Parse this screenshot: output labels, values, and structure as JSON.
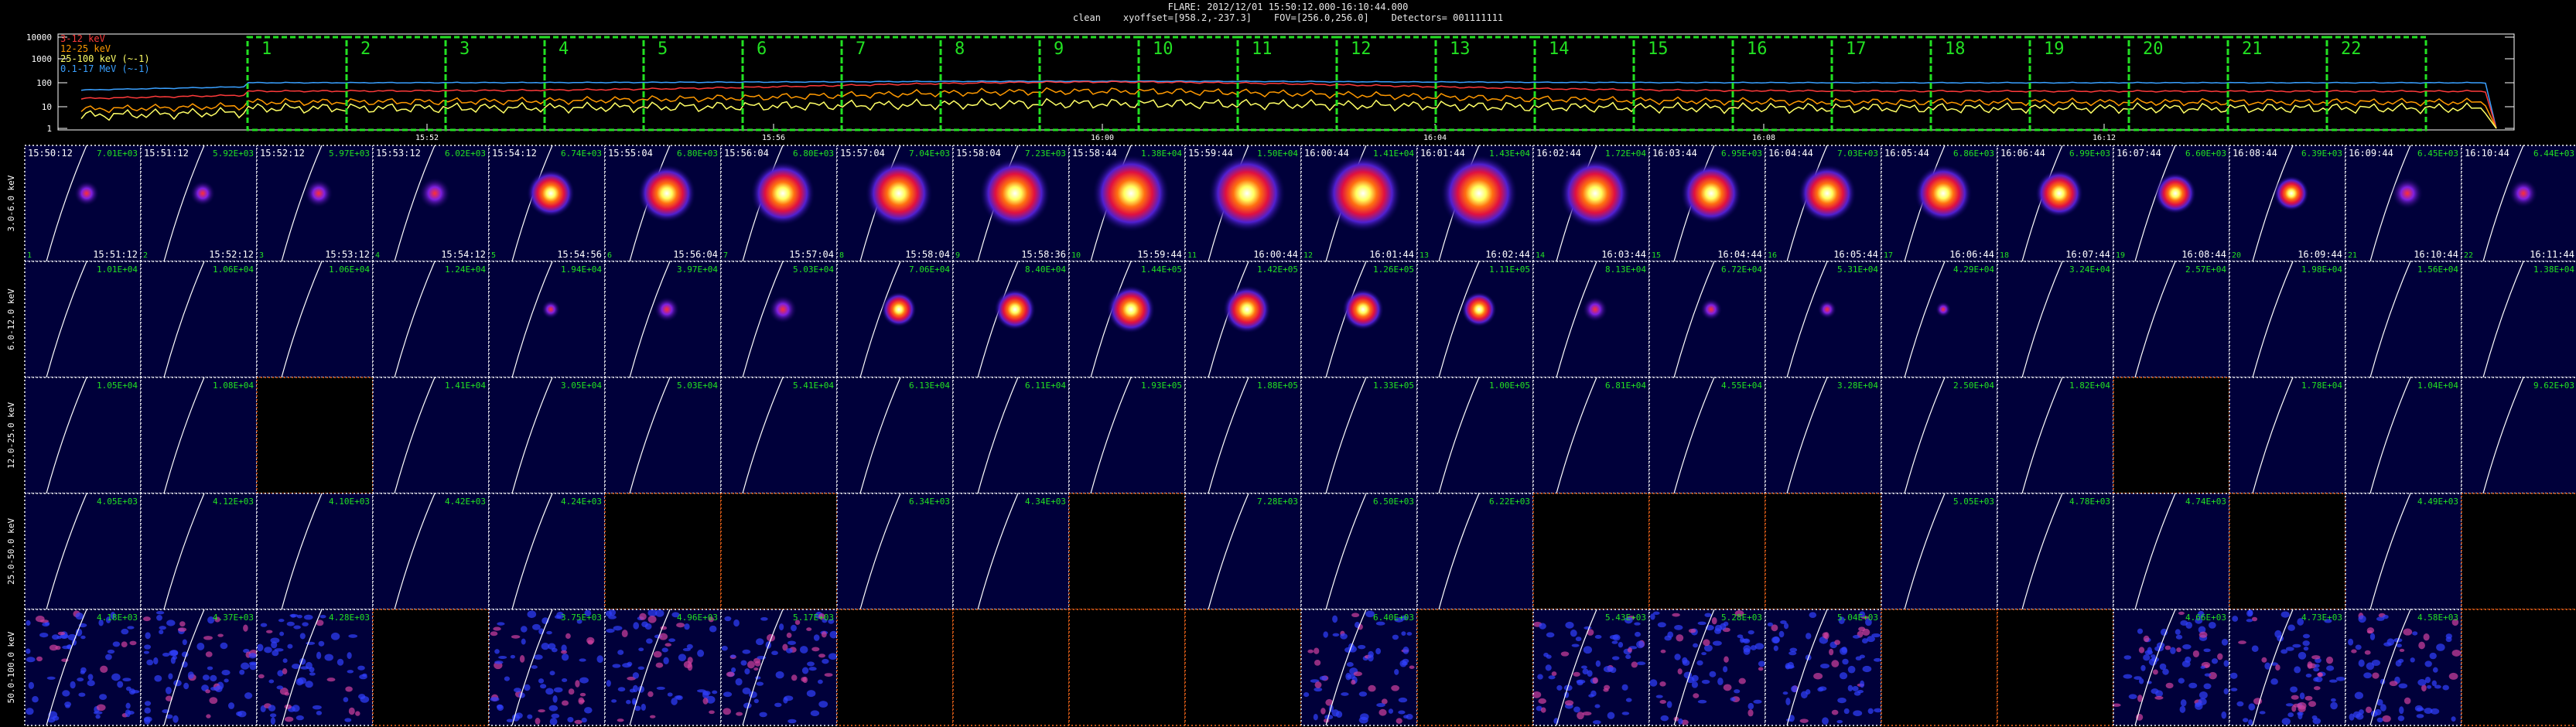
{
  "header": {
    "line1": "FLARE: 2012/12/01 15:50:12.000-16:10:44.000",
    "line2": "clean    xyoffset=[958.2,-237.3]    FOV=[256.0,256.0]    Detectors= 001111111"
  },
  "colors": {
    "band_3_6": "#ff3a3a",
    "band_12_25": "#ff9900",
    "band_25_100": "#ffff66",
    "band_ghost": "#3aa0ff",
    "interval_box": "#22e022",
    "panel_border": "#ffffff",
    "empty_border": "#ff6a1a",
    "limb": "#ffffff",
    "flux_label": "#22e022"
  },
  "chart_data": {
    "type": "line",
    "y_scale": "log",
    "y_ticks": [
      "10000",
      "1000",
      "100",
      "10",
      "1"
    ],
    "x_ticks": [
      "15:52",
      "15:56",
      "16:00",
      "16:04",
      "16:08",
      "16:12"
    ],
    "legend": [
      {
        "label": "3-12 keV",
        "color": "#ff3a3a"
      },
      {
        "label": "12-25 keV",
        "color": "#ff9900"
      },
      {
        "label": "25-100 keV (~-1)",
        "color": "#ffff66"
      },
      {
        "label": "0.1-17 MeV (~-1)",
        "color": "#3aa0ff"
      }
    ],
    "interval_numbers": [
      "1",
      "2",
      "3",
      "4",
      "5",
      "6",
      "7",
      "8",
      "9",
      "10",
      "11",
      "12",
      "13",
      "14",
      "15",
      "16",
      "17",
      "18",
      "19",
      "20",
      "21",
      "22"
    ],
    "energy_bands": [
      "3.0-6.0 keV",
      "6.0-12.0 keV",
      "12.0-25.0 keV",
      "25.0-50.0 keV",
      "50.0-100.0 keV"
    ],
    "start_times": [
      "15:50:12",
      "15:51:12",
      "15:52:12",
      "15:53:12",
      "15:54:12",
      "15:55:04",
      "15:56:04",
      "15:57:04",
      "15:58:04",
      "15:58:44",
      "15:59:44",
      "16:00:44",
      "16:01:44",
      "16:02:44",
      "16:03:44",
      "16:04:44",
      "16:05:44",
      "16:06:44",
      "16:07:44",
      "16:08:44",
      "16:09:44",
      "16:10:44"
    ],
    "end_times": [
      "15:51:12",
      "15:52:12",
      "15:53:12",
      "15:54:12",
      "15:54:56",
      "15:56:04",
      "15:57:04",
      "15:58:04",
      "15:58:36",
      "15:59:44",
      "16:00:44",
      "16:01:44",
      "16:02:44",
      "16:03:44",
      "16:04:44",
      "16:05:44",
      "16:06:44",
      "16:07:44",
      "16:08:44",
      "16:09:44",
      "16:10:44",
      "16:11:44"
    ],
    "flux_labels": [
      [
        "7.01E+03",
        "5.92E+03",
        "5.97E+03",
        "6.02E+03",
        "6.74E+03",
        "6.80E+03",
        "6.80E+03",
        "7.04E+03",
        "7.23E+03",
        "1.38E+04",
        "1.50E+04",
        "1.41E+04",
        "1.43E+04",
        "1.72E+04",
        "6.95E+03",
        "7.03E+03",
        "6.86E+03",
        "6.99E+03",
        "6.60E+03",
        "6.39E+03",
        "6.45E+03",
        "6.44E+03"
      ],
      [
        "1.01E+04",
        "1.06E+04",
        "1.06E+04",
        "1.24E+04",
        "1.94E+04",
        "3.97E+04",
        "5.03E+04",
        "7.06E+04",
        "8.40E+04",
        "1.44E+05",
        "1.42E+05",
        "1.26E+05",
        "1.11E+05",
        "8.13E+04",
        "6.72E+04",
        "5.31E+04",
        "4.29E+04",
        "3.24E+04",
        "2.57E+04",
        "1.98E+04",
        "1.56E+04",
        "1.38E+04"
      ],
      [
        "1.05E+04",
        "1.08E+04",
        "",
        "1.41E+04",
        "3.05E+04",
        "5.03E+04",
        "5.41E+04",
        "6.13E+04",
        "6.11E+04",
        "1.93E+05",
        "1.88E+05",
        "1.33E+05",
        "1.00E+05",
        "6.81E+04",
        "4.55E+04",
        "3.28E+04",
        "2.50E+04",
        "1.82E+04",
        "",
        "1.78E+04",
        "1.04E+04",
        "9.62E+03"
      ],
      [
        "4.05E+03",
        "4.12E+03",
        "4.10E+03",
        "4.42E+03",
        "4.24E+03",
        "",
        "",
        "6.34E+03",
        "4.34E+03",
        "",
        "7.28E+03",
        "6.50E+03",
        "6.22E+03",
        "",
        "",
        "",
        "5.05E+03",
        "4.78E+03",
        "4.74E+03",
        "",
        "4.49E+03",
        ""
      ],
      [
        "4.18E+03",
        "4.37E+03",
        "4.28E+03",
        "",
        "3.75E+03",
        "4.96E+03",
        "5.17E+03",
        "",
        "",
        "",
        "",
        "6.40E+03",
        "",
        "5.43E+03",
        "5.28E+03",
        "5.04E+03",
        "",
        "",
        "4.66E+03",
        "4.73E+03",
        "4.58E+03",
        ""
      ]
    ],
    "empty_panels": [
      [],
      [],
      [
        2,
        18
      ],
      [
        5,
        6,
        9,
        13,
        14,
        15,
        19,
        21
      ],
      [
        3,
        7,
        8,
        9,
        10,
        12,
        16,
        17,
        21
      ]
    ],
    "source_intensity": [
      [
        0.2,
        0.2,
        0.25,
        0.3,
        0.55,
        0.7,
        0.8,
        0.85,
        0.9,
        1.0,
        1.0,
        1.0,
        1.0,
        0.9,
        0.75,
        0.7,
        0.7,
        0.55,
        0.45,
        0.35,
        0.3,
        0.25
      ],
      [
        0,
        0,
        0,
        0,
        0.1,
        0.2,
        0.25,
        0.35,
        0.45,
        0.55,
        0.55,
        0.45,
        0.35,
        0.2,
        0.15,
        0.1,
        0.05,
        0,
        0,
        0,
        0,
        0
      ]
    ]
  }
}
